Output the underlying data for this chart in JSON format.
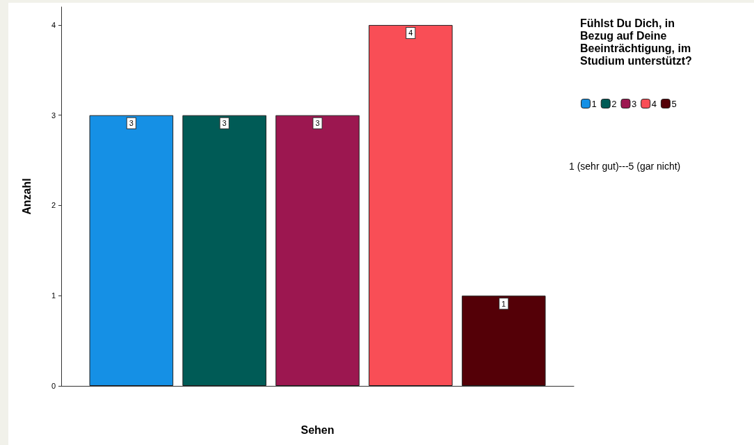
{
  "chart_data": {
    "type": "bar",
    "xlabel": "Sehen",
    "ylabel": "Anzahl",
    "legend_title": "Fühlst Du Dich, in Bezug auf Deine Beeinträchtigung, im Studium unterstützt?",
    "annotations": [
      "1 (sehr gut)---5 (gar nicht)"
    ],
    "categories": [
      null
    ],
    "series": [
      {
        "name": "1",
        "color": "#1590e5",
        "values": [
          3
        ]
      },
      {
        "name": "2",
        "color": "#005b56",
        "values": [
          3
        ]
      },
      {
        "name": "3",
        "color": "#9c1750",
        "values": [
          3
        ]
      },
      {
        "name": "4",
        "color": "#f94e56",
        "values": [
          4
        ]
      },
      {
        "name": "5",
        "color": "#540007",
        "values": [
          1
        ]
      }
    ],
    "ylim": [
      0,
      4.2
    ],
    "yticks": [
      0,
      1,
      2,
      3,
      4
    ],
    "grid": false,
    "legend": "top right",
    "data_labels": true
  }
}
